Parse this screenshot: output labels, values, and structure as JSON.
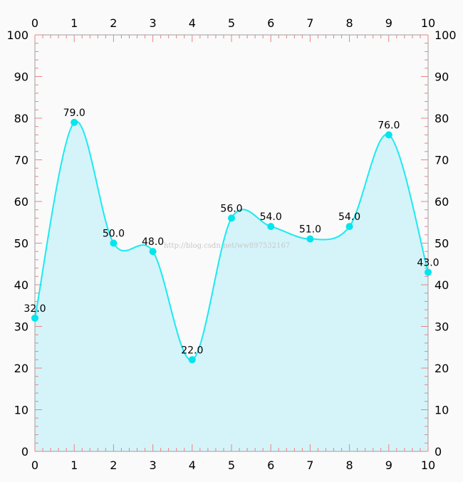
{
  "chart_data": {
    "type": "area",
    "smooth": true,
    "x": [
      0,
      1,
      2,
      3,
      4,
      5,
      6,
      7,
      8,
      9,
      10
    ],
    "values": [
      32.0,
      79.0,
      50.0,
      48.0,
      22.0,
      56.0,
      54.0,
      51.0,
      54.0,
      76.0,
      43.0
    ],
    "data_labels": [
      "32.0",
      "79.0",
      "50.0",
      "48.0",
      "22.0",
      "56.0",
      "54.0",
      "51.0",
      "54.0",
      "76.0",
      "43.0"
    ],
    "xlim": [
      0,
      10
    ],
    "ylim": [
      0,
      100
    ],
    "x_ticks": [
      "0",
      "1",
      "2",
      "3",
      "4",
      "5",
      "6",
      "7",
      "8",
      "9",
      "10"
    ],
    "y_ticks": [
      "0",
      "10",
      "20",
      "30",
      "40",
      "50",
      "60",
      "70",
      "80",
      "90",
      "100"
    ],
    "title": "",
    "xlabel": "",
    "ylabel": "",
    "grid": false,
    "legend": "none",
    "x_axis_positions": [
      "top",
      "bottom"
    ],
    "y_axis_positions": [
      "left",
      "right"
    ]
  },
  "watermark": "http://blog.csdn.net/ww897532167",
  "colors": {
    "line": "#1de9f0",
    "fill": "#d4f4fa",
    "marker": "#00e5ee",
    "axis_ticks": "#f08080",
    "axis_line": "#9e9e9e",
    "background": "#fafafa"
  }
}
